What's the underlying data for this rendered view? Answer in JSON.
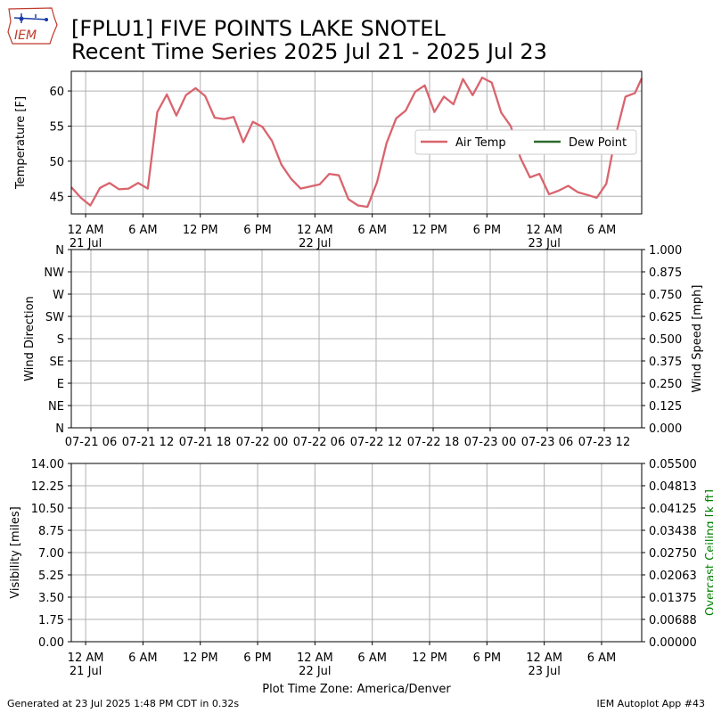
{
  "header": {
    "logo_text": "IEM",
    "title_line1": "[FPLU1] FIVE POINTS LAKE SNOTEL",
    "title_line2": "Recent Time Series 2025 Jul 21 - 2025 Jul 23"
  },
  "footer": {
    "generated": "Generated at 23 Jul 2025 1:48 PM CDT in 0.32s",
    "app": "IEM Autoplot App #43",
    "timezone_label": "Plot Time Zone: America/Denver"
  },
  "colors": {
    "air_temp": "#d9646e",
    "dew_point": "#2d6a2d",
    "ceiling_label": "#008000",
    "grid": "#b0b0b0"
  },
  "chart_data": [
    {
      "type": "line",
      "ylabel": "Temperature [F]",
      "ylim": [
        42.5,
        62.8
      ],
      "yticks": [
        45,
        50,
        55,
        60
      ],
      "xlim_hours": [
        -1.5,
        58.2
      ],
      "xticks": [
        {
          "hour": 0,
          "label": "12 AM",
          "sub": "21 Jul"
        },
        {
          "hour": 6,
          "label": "6 AM",
          "sub": ""
        },
        {
          "hour": 12,
          "label": "12 PM",
          "sub": ""
        },
        {
          "hour": 18,
          "label": "6 PM",
          "sub": ""
        },
        {
          "hour": 24,
          "label": "12 AM",
          "sub": "22 Jul"
        },
        {
          "hour": 30,
          "label": "6 AM",
          "sub": ""
        },
        {
          "hour": 36,
          "label": "12 PM",
          "sub": ""
        },
        {
          "hour": 42,
          "label": "6 PM",
          "sub": ""
        },
        {
          "hour": 48,
          "label": "12 AM",
          "sub": "23 Jul"
        },
        {
          "hour": 54,
          "label": "6 AM",
          "sub": ""
        }
      ],
      "legend": {
        "placement": "center-right",
        "entries": [
          "Air Temp",
          "Dew Point"
        ]
      },
      "grid": true,
      "series": [
        {
          "name": "Air Temp",
          "x": [
            -1.5,
            -0.5,
            0.5,
            1.5,
            2.5,
            3.5,
            4.5,
            5.5,
            6.5,
            7.5,
            8.5,
            9.5,
            10.5,
            11.5,
            12.5,
            13.5,
            14.5,
            15.5,
            16.5,
            17.5,
            18.5,
            19.5,
            20.5,
            21.5,
            22.5,
            23.5,
            24.5,
            25.5,
            26.5,
            27.5,
            28.5,
            29.5,
            30.5,
            31.5,
            32.5,
            33.5,
            34.5,
            35.5,
            36.5,
            37.5,
            38.5,
            39.5,
            40.5,
            41.5,
            42.5,
            43.5,
            44.5,
            45.5,
            46.5,
            47.5,
            48.5,
            49.5,
            50.5,
            51.5,
            52.5,
            53.5,
            54.5,
            55.5,
            56.5,
            57.5,
            58.2
          ],
          "values": [
            46.3,
            44.8,
            43.7,
            46.2,
            46.9,
            46.0,
            46.1,
            46.9,
            46.1,
            57.0,
            59.5,
            56.5,
            59.4,
            60.4,
            59.3,
            56.2,
            56.0,
            56.3,
            52.7,
            55.6,
            54.9,
            52.9,
            49.5,
            47.5,
            46.1,
            46.4,
            46.7,
            48.2,
            48.0,
            44.6,
            43.7,
            43.5,
            47.0,
            52.6,
            56.1,
            57.2,
            59.9,
            60.8,
            57.0,
            59.2,
            58.1,
            61.7,
            59.4,
            61.9,
            61.2,
            56.9,
            55.0,
            50.5,
            47.7,
            48.2,
            45.3,
            45.8,
            46.5,
            45.6,
            45.2,
            44.8,
            46.8,
            53.8,
            59.2,
            59.7,
            61.8
          ]
        },
        {
          "name": "Dew Point",
          "x": [],
          "values": []
        }
      ]
    },
    {
      "type": "line",
      "ylabel": "Wind Direction",
      "y2label": "Wind Speed [mph]",
      "yticks": [
        "N",
        "NE",
        "E",
        "SE",
        "S",
        "SW",
        "W",
        "NW",
        "N"
      ],
      "y2lim": [
        0,
        1
      ],
      "y2ticks": [
        "0.000",
        "0.125",
        "0.250",
        "0.375",
        "0.500",
        "0.625",
        "0.750",
        "0.875",
        "1.000"
      ],
      "xticks": [
        {
          "pos": 0,
          "label": "07-21 06"
        },
        {
          "pos": 1,
          "label": "07-21 12"
        },
        {
          "pos": 2,
          "label": "07-21 18"
        },
        {
          "pos": 3,
          "label": "07-22 00"
        },
        {
          "pos": 4,
          "label": "07-22 06"
        },
        {
          "pos": 5,
          "label": "07-22 12"
        },
        {
          "pos": 6,
          "label": "07-22 18"
        },
        {
          "pos": 7,
          "label": "07-23 00"
        },
        {
          "pos": 8,
          "label": "07-23 06"
        },
        {
          "pos": 9,
          "label": "07-23 12"
        }
      ],
      "grid": true,
      "series": []
    },
    {
      "type": "line",
      "ylabel": "Visibility [miles]",
      "y2label": "Overcast Ceiling [k ft]",
      "ylim": [
        0,
        14
      ],
      "yticks": [
        "0.00",
        "1.75",
        "3.50",
        "5.25",
        "7.00",
        "8.75",
        "10.50",
        "12.25",
        "14.00"
      ],
      "y2lim": [
        0,
        0.055
      ],
      "y2ticks": [
        "0.00000",
        "0.00688",
        "0.01375",
        "0.02063",
        "0.02750",
        "0.03438",
        "0.04125",
        "0.04813",
        "0.05500"
      ],
      "xticks": [
        {
          "hour": 0,
          "label": "12 AM",
          "sub": "21 Jul"
        },
        {
          "hour": 6,
          "label": "6 AM",
          "sub": ""
        },
        {
          "hour": 12,
          "label": "12 PM",
          "sub": ""
        },
        {
          "hour": 18,
          "label": "6 PM",
          "sub": ""
        },
        {
          "hour": 24,
          "label": "12 AM",
          "sub": "22 Jul"
        },
        {
          "hour": 30,
          "label": "6 AM",
          "sub": ""
        },
        {
          "hour": 36,
          "label": "12 PM",
          "sub": ""
        },
        {
          "hour": 42,
          "label": "6 PM",
          "sub": ""
        },
        {
          "hour": 48,
          "label": "12 AM",
          "sub": "23 Jul"
        },
        {
          "hour": 54,
          "label": "6 AM",
          "sub": ""
        }
      ],
      "grid": true,
      "series": []
    }
  ]
}
